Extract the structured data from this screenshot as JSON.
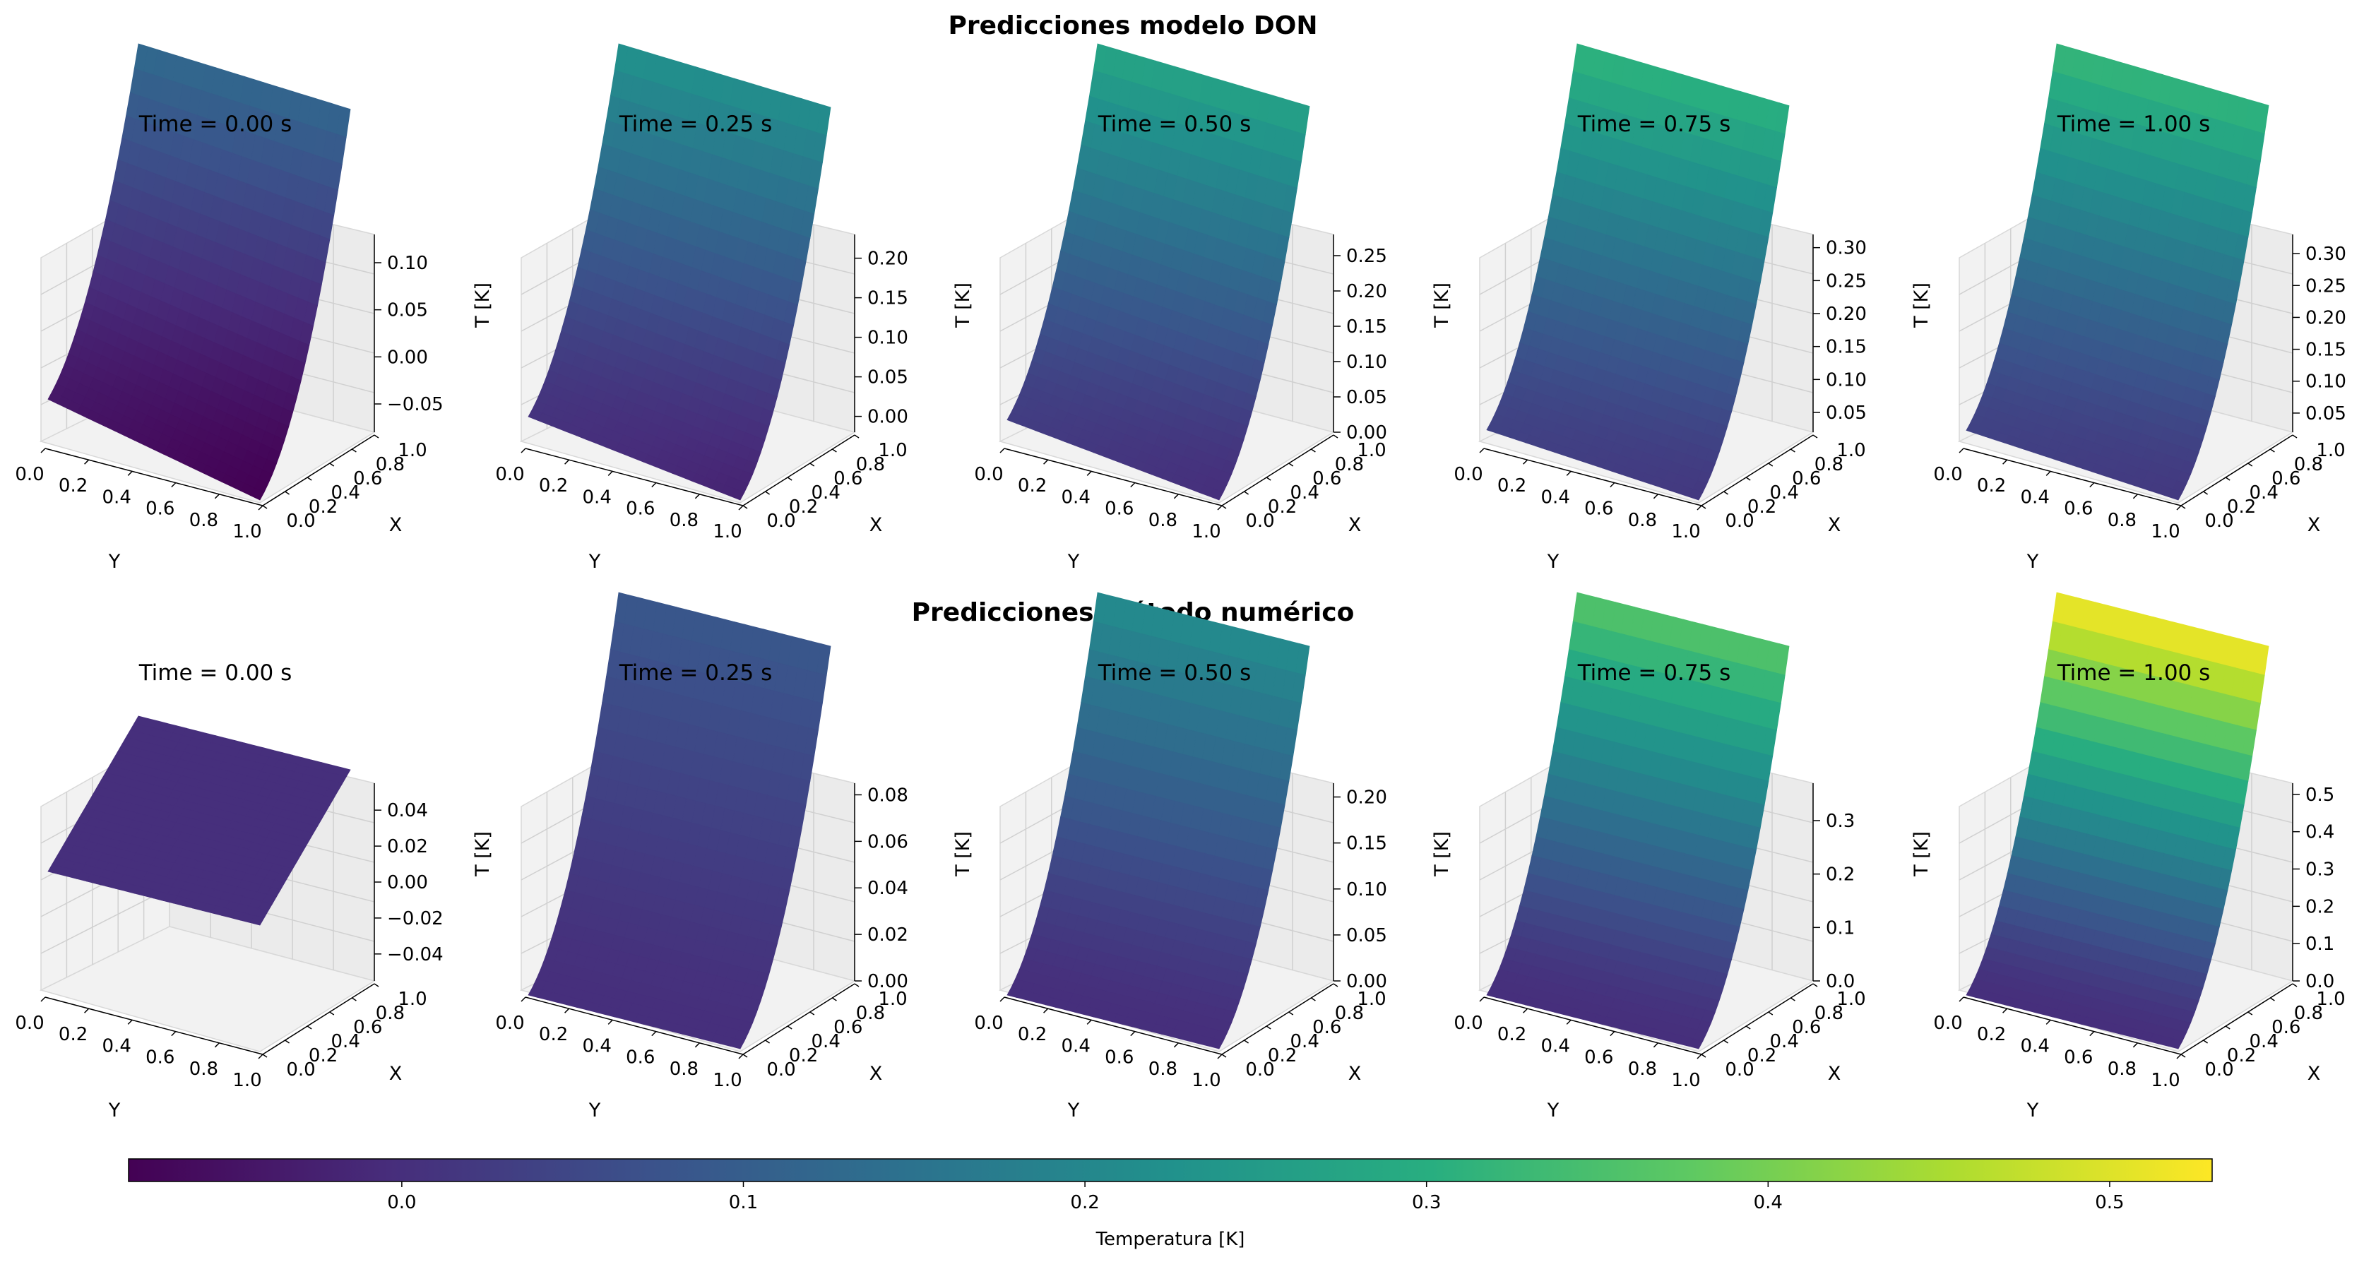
{
  "colorbar": {
    "label": "Temperatura [K]",
    "range": [
      -0.08,
      0.53
    ],
    "ticks": [
      0.0,
      0.1,
      0.2,
      0.3,
      0.4,
      0.5
    ],
    "tick_labels": [
      "0.0",
      "0.1",
      "0.2",
      "0.3",
      "0.4",
      "0.5"
    ],
    "colormap": "viridis"
  },
  "chart_data": [
    {
      "type": "surface3d",
      "row_title": "Predicciones modelo DON",
      "xlabel": "Y",
      "ylabel": "X",
      "zlabel": "T [K]",
      "y_ticks": [
        "0.0",
        "0.2",
        "0.4",
        "0.6",
        "0.8",
        "1.0"
      ],
      "x_ticks": [
        "0.0",
        "0.2",
        "0.4",
        "0.6",
        "0.8",
        "1.0"
      ],
      "panels": [
        {
          "title": "Time = 0.00 s",
          "z_ticks": [
            "−0.05",
            "0.00",
            "0.05",
            "0.10"
          ],
          "zlim": [
            -0.08,
            0.13
          ],
          "corners": {
            "y0_x0": -0.04,
            "y1_x0": -0.08,
            "y0_x1": 0.13,
            "y1_x1": 0.12
          }
        },
        {
          "title": "Time = 0.25 s",
          "z_ticks": [
            "0.00",
            "0.05",
            "0.10",
            "0.15",
            "0.20"
          ],
          "zlim": [
            -0.02,
            0.23
          ],
          "corners": {
            "y0_x0": 0.01,
            "y1_x0": -0.02,
            "y0_x1": 0.23,
            "y1_x1": 0.22
          }
        },
        {
          "title": "Time = 0.50 s",
          "z_ticks": [
            "0.00",
            "0.05",
            "0.10",
            "0.15",
            "0.20",
            "0.25"
          ],
          "zlim": [
            0.0,
            0.28
          ],
          "corners": {
            "y0_x0": 0.03,
            "y1_x0": 0.0,
            "y0_x1": 0.28,
            "y1_x1": 0.27
          }
        },
        {
          "title": "Time = 0.75 s",
          "z_ticks": [
            "0.05",
            "0.10",
            "0.15",
            "0.20",
            "0.25",
            "0.30"
          ],
          "zlim": [
            0.02,
            0.32
          ],
          "corners": {
            "y0_x0": 0.04,
            "y1_x0": 0.02,
            "y0_x1": 0.32,
            "y1_x1": 0.31
          }
        },
        {
          "title": "Time = 1.00 s",
          "z_ticks": [
            "0.05",
            "0.10",
            "0.15",
            "0.20",
            "0.25",
            "0.30"
          ],
          "zlim": [
            0.02,
            0.33
          ],
          "corners": {
            "y0_x0": 0.04,
            "y1_x0": 0.02,
            "y0_x1": 0.33,
            "y1_x1": 0.32
          }
        }
      ]
    },
    {
      "type": "surface3d",
      "row_title": "Predicciones método numérico",
      "xlabel": "Y",
      "ylabel": "X",
      "zlabel": "T [K]",
      "y_ticks": [
        "0.0",
        "0.2",
        "0.4",
        "0.6",
        "0.8",
        "1.0"
      ],
      "x_ticks": [
        "0.0",
        "0.2",
        "0.4",
        "0.6",
        "0.8",
        "1.0"
      ],
      "panels": [
        {
          "title": "Time = 0.00 s",
          "z_ticks": [
            "−0.04",
            "−0.02",
            "0.00",
            "0.02",
            "0.04"
          ],
          "zlim": [
            -0.055,
            0.055
          ],
          "corners": {
            "y0_x0": 0.0,
            "y1_x0": 0.0,
            "y0_x1": 0.0,
            "y1_x1": 0.0
          }
        },
        {
          "title": "Time = 0.25 s",
          "z_ticks": [
            "0.00",
            "0.02",
            "0.04",
            "0.06",
            "0.08"
          ],
          "zlim": [
            0.0,
            0.085
          ],
          "corners": {
            "y0_x0": 0.0,
            "y1_x0": 0.0,
            "y0_x1": 0.085,
            "y1_x1": 0.085
          }
        },
        {
          "title": "Time = 0.50 s",
          "z_ticks": [
            "0.00",
            "0.05",
            "0.10",
            "0.15",
            "0.20"
          ],
          "zlim": [
            0.0,
            0.215
          ],
          "corners": {
            "y0_x0": 0.0,
            "y1_x0": 0.0,
            "y0_x1": 0.215,
            "y1_x1": 0.215
          }
        },
        {
          "title": "Time = 0.75 s",
          "z_ticks": [
            "0.0",
            "0.1",
            "0.2",
            "0.3"
          ],
          "zlim": [
            0.0,
            0.37
          ],
          "corners": {
            "y0_x0": 0.0,
            "y1_x0": 0.0,
            "y0_x1": 0.37,
            "y1_x1": 0.37
          }
        },
        {
          "title": "Time = 1.00 s",
          "z_ticks": [
            "0.0",
            "0.1",
            "0.2",
            "0.3",
            "0.4",
            "0.5"
          ],
          "zlim": [
            0.0,
            0.53
          ],
          "corners": {
            "y0_x0": 0.0,
            "y1_x0": 0.0,
            "y0_x1": 0.53,
            "y1_x1": 0.53
          }
        }
      ]
    }
  ]
}
